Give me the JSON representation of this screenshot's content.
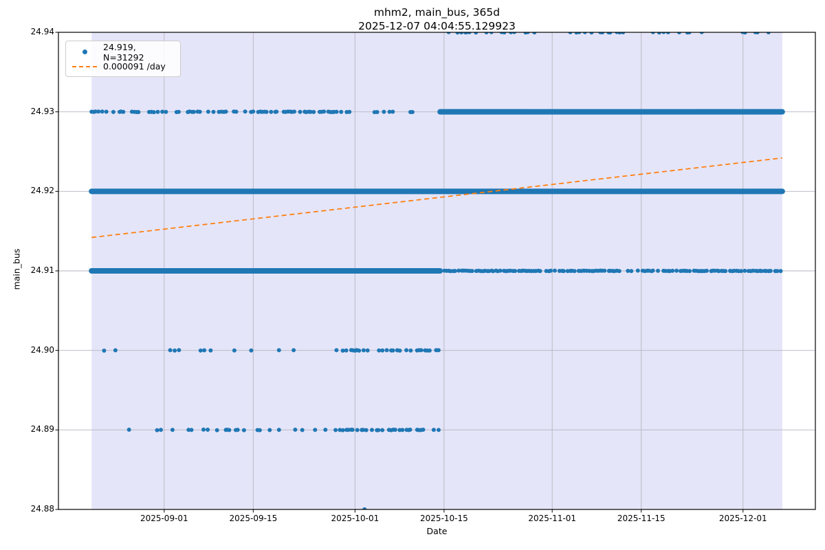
{
  "figure": {
    "title_line1": "mhm2, main_bus, 365d",
    "title_line2": "2025-12-07 04:04:55.129923",
    "xlabel": "Date",
    "ylabel": "main_bus"
  },
  "legend": {
    "position": "upper left",
    "entries": [
      {
        "marker": "scatter-dot",
        "label": "24.919, N=31292"
      },
      {
        "marker": "trend-dash",
        "label": "0.000091 /day"
      }
    ]
  },
  "chart_data": {
    "type": "scatter",
    "title": "mhm2, main_bus, 365d\n2025-12-07 04:04:55.129923",
    "xlabel": "Date",
    "ylabel": "main_bus",
    "grid": true,
    "legend_position": "upper left",
    "stats": {
      "mean": 24.919,
      "n_points": 31292,
      "trend_per_day": 9.1e-05,
      "window": "365d"
    },
    "x_axis": {
      "min": "2025-08-15T09:00:00Z",
      "max": "2025-12-12T09:00:00Z",
      "ticks": [
        "2025-09-01",
        "2025-09-15",
        "2025-10-01",
        "2025-10-15",
        "2025-11-01",
        "2025-11-15",
        "2025-12-01"
      ]
    },
    "y_axis": {
      "min": 24.88,
      "max": 24.94,
      "ticks": [
        24.88,
        24.89,
        24.9,
        24.91,
        24.92,
        24.93,
        24.94
      ],
      "tick_labels": [
        "24.88",
        "24.89",
        "24.90",
        "24.91",
        "24.92",
        "24.93",
        "24.94"
      ]
    },
    "data_window": {
      "from": "2025-08-20T14:00:00Z",
      "to": "2025-12-07T04:05:00Z"
    },
    "series_bands": [
      {
        "value": 24.94,
        "segments": [
          {
            "style": "dots",
            "from": "2025-10-14T09:00:00Z",
            "to": "2025-12-07T04:05:00Z",
            "density": 0.28
          }
        ]
      },
      {
        "value": 24.93,
        "segments": [
          {
            "style": "dots",
            "from": "2025-08-20T14:00:00Z",
            "to": "2025-10-07T00:00:00Z",
            "density": 0.55
          },
          {
            "style": "dots",
            "from": "2025-10-07T00:00:00Z",
            "to": "2025-10-11T12:00:00Z",
            "density": 0.35
          },
          {
            "style": "solid",
            "from": "2025-10-14T09:00:00Z",
            "to": "2025-12-07T04:05:00Z"
          }
        ]
      },
      {
        "value": 24.92,
        "segments": [
          {
            "style": "solid",
            "from": "2025-08-20T14:00:00Z",
            "to": "2025-12-07T04:05:00Z"
          }
        ]
      },
      {
        "value": 24.91,
        "segments": [
          {
            "style": "solid",
            "from": "2025-08-20T14:00:00Z",
            "to": "2025-10-14T09:00:00Z"
          },
          {
            "style": "dots",
            "from": "2025-10-14T09:00:00Z",
            "to": "2025-12-07T04:05:00Z",
            "density": 0.78
          }
        ]
      },
      {
        "value": 24.9,
        "segments": [
          {
            "style": "dots",
            "from": "2025-08-20T14:00:00Z",
            "to": "2025-09-28T00:00:00Z",
            "density": 0.16
          },
          {
            "style": "dots",
            "from": "2025-09-28T00:00:00Z",
            "to": "2025-10-14T09:00:00Z",
            "density": 0.45
          }
        ]
      },
      {
        "value": 24.89,
        "segments": [
          {
            "style": "dots",
            "from": "2025-08-21T12:00:00Z",
            "to": "2025-09-28T00:00:00Z",
            "density": 0.22
          },
          {
            "style": "dots",
            "from": "2025-09-28T00:00:00Z",
            "to": "2025-10-14T09:00:00Z",
            "density": 0.5
          }
        ]
      },
      {
        "value": 24.88,
        "segments": [
          {
            "style": "points",
            "xs": [
              "2025-10-02T12:00:00Z"
            ]
          }
        ]
      }
    ],
    "trend": {
      "from": {
        "x": "2025-08-20T14:00:00Z",
        "y": 24.9142
      },
      "to": {
        "x": "2025-12-07T04:05:00Z",
        "y": 24.9242
      }
    },
    "colors": {
      "points": "#1f77b4",
      "trend": "#ff7f0e",
      "shade": "#e5e5f9",
      "grid": "#b4b4bf",
      "spine": "#000000",
      "text": "#1a1a1a"
    }
  }
}
